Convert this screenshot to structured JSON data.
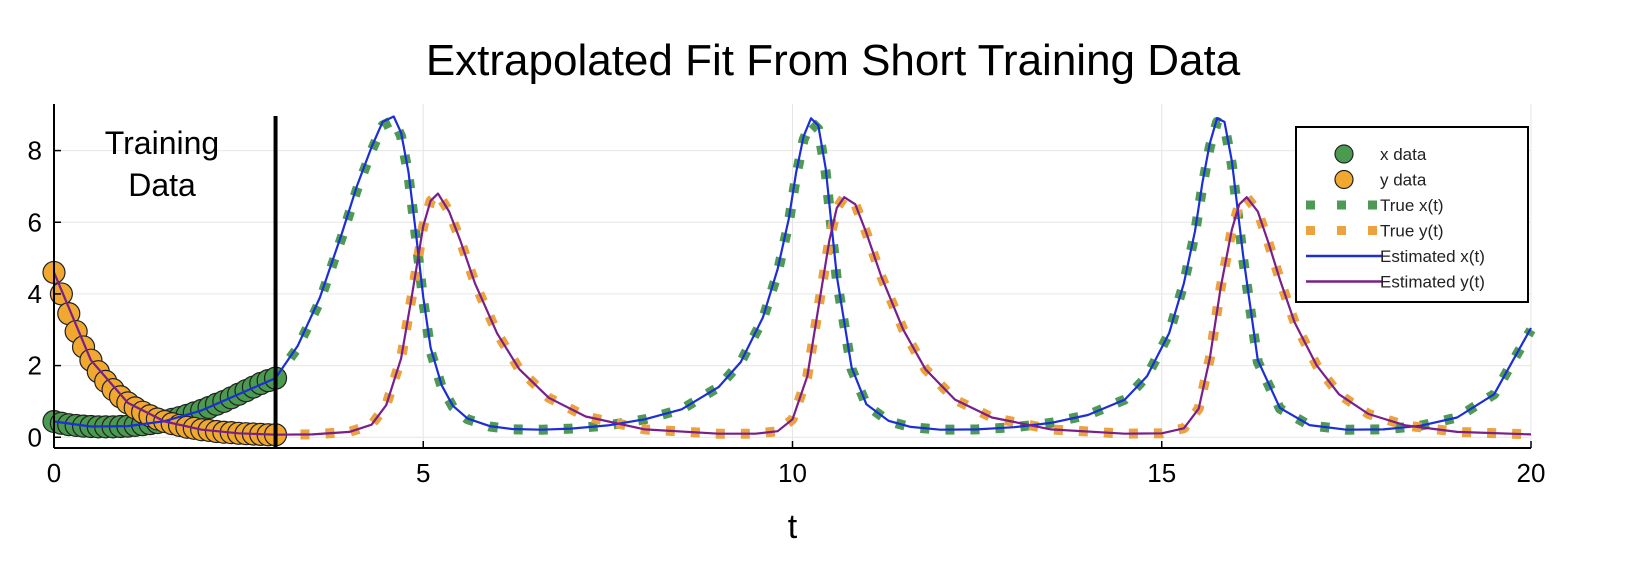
{
  "chart_data": {
    "type": "line",
    "title": "Extrapolated Fit From Short Training Data",
    "xlabel": "t",
    "ylabel": "",
    "xlim": [
      0,
      20
    ],
    "ylim": [
      -0.3,
      9.3
    ],
    "xticks": [
      0,
      5,
      10,
      15,
      20
    ],
    "yticks": [
      0,
      2,
      4,
      6,
      8
    ],
    "grid": true,
    "legend_position": "top-right",
    "annotation": {
      "lines": [
        "Training",
        "Data"
      ],
      "divider_t": 3.0
    },
    "colors": {
      "x_data": "#4a9a4f",
      "y_data": "#f0a830",
      "true_x": "#4e9a55",
      "true_y": "#eba23f",
      "est_x": "#1a2fd6",
      "est_y": "#7a1f8a"
    },
    "series": [
      {
        "name": "x data",
        "style": "markers",
        "x": [
          0,
          0.1,
          0.2,
          0.3,
          0.4,
          0.5,
          0.6,
          0.7,
          0.8,
          0.9,
          1.0,
          1.1,
          1.2,
          1.3,
          1.4,
          1.5,
          1.6,
          1.7,
          1.8,
          1.9,
          2.0,
          2.1,
          2.2,
          2.3,
          2.4,
          2.5,
          2.6,
          2.7,
          2.8,
          2.9,
          3.0
        ],
        "y": [
          0.44,
          0.39,
          0.35,
          0.33,
          0.31,
          0.3,
          0.29,
          0.29,
          0.29,
          0.3,
          0.31,
          0.33,
          0.35,
          0.38,
          0.41,
          0.45,
          0.5,
          0.55,
          0.61,
          0.68,
          0.75,
          0.83,
          0.92,
          1.0,
          1.1,
          1.2,
          1.3,
          1.4,
          1.5,
          1.58,
          1.65
        ]
      },
      {
        "name": "y data",
        "style": "markers",
        "x": [
          0,
          0.1,
          0.2,
          0.3,
          0.4,
          0.5,
          0.6,
          0.7,
          0.8,
          0.9,
          1.0,
          1.1,
          1.2,
          1.3,
          1.4,
          1.5,
          1.6,
          1.7,
          1.8,
          1.9,
          2.0,
          2.1,
          2.2,
          2.3,
          2.4,
          2.5,
          2.6,
          2.7,
          2.8,
          2.9,
          3.0
        ],
        "y": [
          4.6,
          4.0,
          3.45,
          2.95,
          2.52,
          2.15,
          1.83,
          1.56,
          1.33,
          1.13,
          0.96,
          0.82,
          0.7,
          0.6,
          0.51,
          0.44,
          0.38,
          0.33,
          0.28,
          0.25,
          0.21,
          0.19,
          0.16,
          0.14,
          0.13,
          0.11,
          0.1,
          0.09,
          0.08,
          0.07,
          0.07
        ]
      },
      {
        "name": "True x(t)",
        "style": "dotted",
        "x": [
          3.0,
          3.3,
          3.6,
          3.9,
          4.1,
          4.3,
          4.45,
          4.6,
          4.7,
          4.8,
          4.9,
          5.0,
          5.1,
          5.25,
          5.4,
          5.6,
          5.9,
          6.2,
          6.6,
          7.0,
          7.5,
          8.0,
          8.5,
          9.0,
          9.3,
          9.6,
          9.8,
          9.95,
          10.05,
          10.15,
          10.25,
          10.35,
          10.45,
          10.6,
          10.8,
          11.0,
          11.3,
          11.6,
          12.0,
          12.5,
          13.0,
          13.5,
          14.0,
          14.5,
          14.8,
          15.1,
          15.3,
          15.45,
          15.55,
          15.65,
          15.75,
          15.85,
          15.95,
          16.1,
          16.3,
          16.6,
          17.0,
          17.5,
          18.0,
          18.5,
          19.0,
          19.5,
          20.0
        ],
        "y": [
          1.65,
          2.5,
          3.8,
          5.6,
          6.9,
          8.0,
          8.7,
          8.85,
          8.4,
          7.3,
          5.6,
          3.8,
          2.4,
          1.4,
          0.85,
          0.5,
          0.3,
          0.22,
          0.21,
          0.24,
          0.33,
          0.5,
          0.78,
          1.4,
          2.1,
          3.3,
          4.6,
          6.0,
          7.3,
          8.3,
          8.8,
          8.6,
          7.4,
          4.4,
          1.9,
          0.9,
          0.45,
          0.28,
          0.21,
          0.22,
          0.28,
          0.4,
          0.62,
          1.05,
          1.7,
          2.9,
          4.3,
          5.7,
          7.0,
          8.1,
          8.8,
          8.7,
          7.6,
          5.0,
          2.1,
          0.8,
          0.33,
          0.21,
          0.22,
          0.32,
          0.55,
          1.2,
          3.0
        ]
      },
      {
        "name": "True y(t)",
        "style": "dotted",
        "x": [
          3.0,
          3.5,
          4.0,
          4.3,
          4.5,
          4.7,
          4.85,
          5.0,
          5.1,
          5.2,
          5.35,
          5.5,
          5.7,
          6.0,
          6.3,
          6.7,
          7.2,
          8.0,
          9.0,
          9.5,
          9.8,
          10.0,
          10.2,
          10.35,
          10.5,
          10.6,
          10.7,
          10.85,
          11.0,
          11.2,
          11.5,
          11.8,
          12.2,
          12.7,
          13.5,
          14.5,
          15.0,
          15.3,
          15.5,
          15.65,
          15.8,
          15.95,
          16.05,
          16.15,
          16.3,
          16.45,
          16.6,
          16.8,
          17.1,
          17.4,
          17.8,
          18.3,
          19.0,
          20.0
        ],
        "y": [
          0.07,
          0.08,
          0.15,
          0.35,
          0.9,
          2.2,
          4.0,
          5.9,
          6.6,
          6.8,
          6.3,
          5.5,
          4.3,
          2.9,
          1.9,
          1.1,
          0.58,
          0.22,
          0.1,
          0.1,
          0.17,
          0.5,
          1.7,
          3.6,
          5.5,
          6.4,
          6.7,
          6.5,
          5.7,
          4.5,
          3.0,
          1.9,
          1.05,
          0.55,
          0.22,
          0.1,
          0.11,
          0.25,
          0.8,
          2.2,
          4.2,
          5.8,
          6.5,
          6.7,
          6.3,
          5.4,
          4.4,
          3.2,
          2.0,
          1.2,
          0.65,
          0.33,
          0.15,
          0.08
        ]
      },
      {
        "name": "Estimated x(t)",
        "style": "line",
        "x": [
          0,
          0.5,
          1.0,
          1.5,
          2.0,
          2.5,
          3.0,
          3.3,
          3.6,
          3.9,
          4.1,
          4.3,
          4.45,
          4.6,
          4.7,
          4.8,
          4.9,
          5.0,
          5.1,
          5.25,
          5.4,
          5.6,
          5.9,
          6.2,
          6.6,
          7.0,
          7.5,
          8.0,
          8.5,
          9.0,
          9.3,
          9.6,
          9.8,
          9.95,
          10.05,
          10.15,
          10.25,
          10.35,
          10.45,
          10.6,
          10.8,
          11.0,
          11.3,
          11.6,
          12.0,
          12.5,
          13.0,
          13.5,
          14.0,
          14.5,
          14.8,
          15.1,
          15.3,
          15.45,
          15.55,
          15.65,
          15.75,
          15.85,
          15.95,
          16.1,
          16.3,
          16.6,
          17.0,
          17.5,
          18.0,
          18.5,
          19.0,
          19.5,
          20.0
        ],
        "y": [
          0.44,
          0.3,
          0.31,
          0.45,
          0.75,
          1.2,
          1.65,
          2.55,
          3.9,
          5.7,
          7.0,
          8.1,
          8.8,
          8.95,
          8.5,
          7.4,
          5.7,
          3.9,
          2.5,
          1.45,
          0.88,
          0.52,
          0.31,
          0.23,
          0.21,
          0.24,
          0.33,
          0.5,
          0.78,
          1.4,
          2.1,
          3.35,
          4.7,
          6.1,
          7.4,
          8.4,
          8.9,
          8.7,
          7.5,
          4.5,
          1.95,
          0.92,
          0.46,
          0.29,
          0.21,
          0.22,
          0.28,
          0.4,
          0.62,
          1.05,
          1.7,
          2.9,
          4.3,
          5.75,
          7.1,
          8.2,
          8.9,
          8.8,
          7.7,
          5.1,
          2.15,
          0.82,
          0.34,
          0.21,
          0.22,
          0.32,
          0.55,
          1.2,
          3.05
        ]
      },
      {
        "name": "Estimated y(t)",
        "style": "line",
        "x": [
          0,
          0.5,
          1.0,
          1.5,
          2.0,
          2.5,
          3.0,
          3.5,
          4.0,
          4.3,
          4.5,
          4.7,
          4.85,
          5.0,
          5.1,
          5.2,
          5.35,
          5.5,
          5.7,
          6.0,
          6.3,
          6.7,
          7.2,
          8.0,
          9.0,
          9.5,
          9.8,
          10.0,
          10.2,
          10.35,
          10.5,
          10.6,
          10.7,
          10.85,
          11.0,
          11.2,
          11.5,
          11.8,
          12.2,
          12.7,
          13.5,
          14.5,
          15.0,
          15.3,
          15.5,
          15.65,
          15.8,
          15.95,
          16.05,
          16.15,
          16.3,
          16.45,
          16.6,
          16.8,
          17.1,
          17.4,
          17.8,
          18.3,
          19.0,
          20.0
        ],
        "y": [
          4.6,
          2.15,
          0.96,
          0.44,
          0.21,
          0.11,
          0.07,
          0.08,
          0.15,
          0.35,
          0.9,
          2.2,
          4.0,
          5.9,
          6.6,
          6.8,
          6.3,
          5.5,
          4.3,
          2.9,
          1.9,
          1.1,
          0.58,
          0.22,
          0.1,
          0.1,
          0.17,
          0.5,
          1.7,
          3.6,
          5.5,
          6.4,
          6.7,
          6.5,
          5.7,
          4.5,
          3.0,
          1.9,
          1.05,
          0.55,
          0.22,
          0.1,
          0.11,
          0.25,
          0.8,
          2.2,
          4.2,
          5.8,
          6.5,
          6.7,
          6.3,
          5.4,
          4.4,
          3.2,
          2.0,
          1.2,
          0.65,
          0.33,
          0.15,
          0.08
        ]
      }
    ]
  }
}
